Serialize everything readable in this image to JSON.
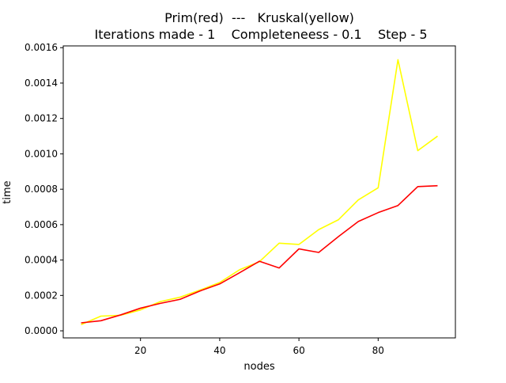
{
  "chart_data": {
    "type": "line",
    "title_line1": "Prim(red)  ---   Kruskal(yellow)",
    "title_line2": "Iterations made - 1    Completeneess - 0.1    Step - 5",
    "xlabel": "nodes",
    "ylabel": "time",
    "xlim": [
      0.5,
      99.5
    ],
    "ylim": [
      -4e-05,
      0.00161
    ],
    "x_ticks": [
      20,
      40,
      60,
      80
    ],
    "x_tick_labels": [
      "20",
      "40",
      "60",
      "80"
    ],
    "y_ticks": [
      0,
      0.0002,
      0.0004,
      0.0006,
      0.0008,
      0.001,
      0.0012,
      0.0014,
      0.0016
    ],
    "y_tick_labels": [
      "0.0000",
      "0.0002",
      "0.0004",
      "0.0006",
      "0.0008",
      "0.0010",
      "0.0012",
      "0.0014",
      "0.0016"
    ],
    "grid": false,
    "legend": "none",
    "x": [
      5,
      10,
      15,
      20,
      25,
      30,
      35,
      40,
      45,
      50,
      55,
      60,
      65,
      70,
      75,
      80,
      85,
      90,
      95
    ],
    "series": [
      {
        "color": "#ffff00",
        "values": [
          3.5e-05,
          8.3e-05,
          8.8e-05,
          0.000118,
          0.000165,
          0.00019,
          0.00023,
          0.000273,
          0.000345,
          0.00039,
          0.000495,
          0.000488,
          0.000572,
          0.000628,
          0.00074,
          0.000808,
          0.001532,
          0.001018,
          0.0011
        ]
      },
      {
        "color": "#ff0000",
        "values": [
          4.5e-05,
          5.7e-05,
          9e-05,
          0.000128,
          0.000155,
          0.000178,
          0.000225,
          0.000265,
          0.000328,
          0.000393,
          0.000355,
          0.000463,
          0.000443,
          0.000533,
          0.000618,
          0.000668,
          0.000708,
          0.000815,
          0.00082
        ]
      }
    ]
  }
}
